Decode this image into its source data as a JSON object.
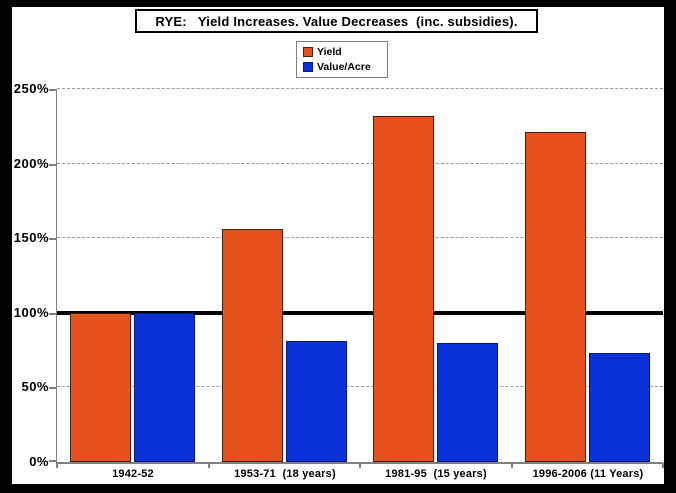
{
  "window": {
    "frame_color": "#000000",
    "background": "#ffffff"
  },
  "chart_data": {
    "type": "bar",
    "title": "RYE:   Yield Increases. Value Decreases  (inc. subsidies).",
    "categories": [
      "1942-52",
      "1953-71  (18 years)",
      "1981-95  (15 years)",
      "1996-2006 (11 Years)"
    ],
    "series": [
      {
        "name": "Yield",
        "color": "#e5521d",
        "border_color": "#45220a",
        "values": [
          100,
          156,
          232,
          221
        ]
      },
      {
        "name": "Value/Acre",
        "color": "#0a30d8",
        "border_color": "#06197a",
        "values": [
          100,
          81,
          80,
          73
        ]
      }
    ],
    "ylim": [
      0,
      250
    ],
    "ytick_step": 50,
    "ytick_labels": [
      "0%",
      "50%",
      "100%",
      "150%",
      "200%",
      "250%"
    ],
    "reference_line": {
      "value": 100,
      "color": "#000000",
      "thickness_px": 4
    },
    "grid": {
      "orientation": "horizontal",
      "style": "dashed",
      "color": "#999999"
    },
    "axis_color": "#7f7f7f",
    "legend_position": "top-center",
    "legend_border_color": "#7f7f7f"
  }
}
